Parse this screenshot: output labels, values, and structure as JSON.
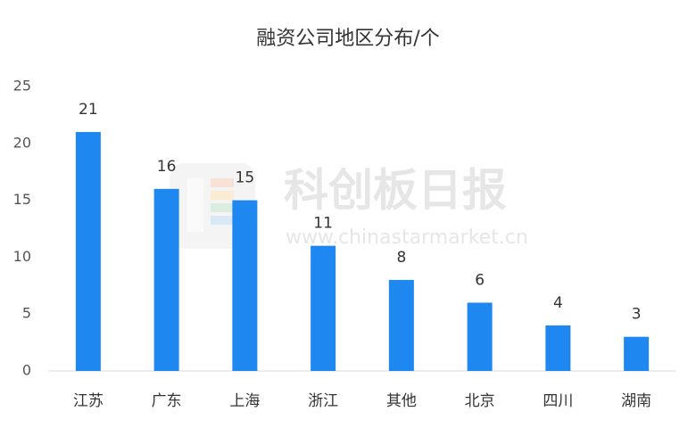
{
  "chart_data": {
    "type": "bar",
    "title": "融资公司地区分布/个",
    "watermark": "科创板日报",
    "watermark_url": "www.chinastarmarket.cn",
    "categories": [
      "江苏",
      "广东",
      "上海",
      "浙江",
      "其他",
      "北京",
      "四川",
      "湖南"
    ],
    "values": [
      21,
      16,
      15,
      11,
      8,
      6,
      4,
      3
    ],
    "color": "#1e88f0",
    "ylim": [
      0,
      25
    ],
    "yticks": [
      0,
      5,
      10,
      15,
      20,
      25
    ],
    "grid": false
  }
}
